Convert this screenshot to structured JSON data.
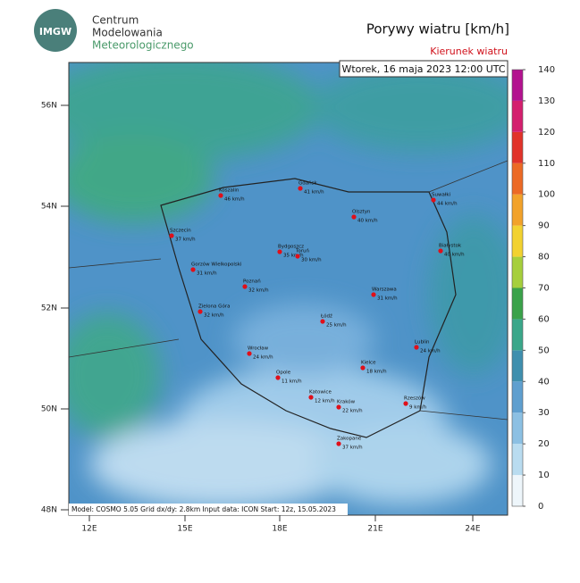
{
  "header": {
    "logo": "IMGW",
    "institution": [
      "Centrum",
      "Modelowania",
      "Meteorologicznego"
    ],
    "title": "Porywy wiatru [km/h]",
    "subtitle": "Kierunek wiatru",
    "date": "Wtorek, 16 maja 2023 12:00 UTC"
  },
  "map": {
    "lat_labels": [
      "56N",
      "54N",
      "52N",
      "50N",
      "48N"
    ],
    "lon_labels": [
      "12E",
      "15E",
      "18E",
      "21E",
      "24E"
    ],
    "cities": [
      {
        "name": "Gdańsk",
        "gust": "41 km/h"
      },
      {
        "name": "Koszalin",
        "gust": "46 km/h"
      },
      {
        "name": "Suwałki",
        "gust": "44 km/h"
      },
      {
        "name": "Olsztyn",
        "gust": "40 km/h"
      },
      {
        "name": "Szczecin",
        "gust": "37 km/h"
      },
      {
        "name": "Bydgoszcz",
        "gust": "35 km/h"
      },
      {
        "name": "Toruń",
        "gust": "30 km/h"
      },
      {
        "name": "Białystok",
        "gust": "40 km/h"
      },
      {
        "name": "Gorzów Wielkopolski",
        "gust": "31 km/h"
      },
      {
        "name": "Poznań",
        "gust": "32 km/h"
      },
      {
        "name": "Warszawa",
        "gust": "31 km/h"
      },
      {
        "name": "Zielona Góra",
        "gust": "32 km/h"
      },
      {
        "name": "Łódź",
        "gust": "25 km/h"
      },
      {
        "name": "Lublin",
        "gust": "24 km/h"
      },
      {
        "name": "Wrocław",
        "gust": "24 km/h"
      },
      {
        "name": "Kielce",
        "gust": "18 km/h"
      },
      {
        "name": "Opole",
        "gust": "11 km/h"
      },
      {
        "name": "Katowice",
        "gust": "12 km/h"
      },
      {
        "name": "Kraków",
        "gust": "22 km/h"
      },
      {
        "name": "Rzeszów",
        "gust": "9 km/h"
      },
      {
        "name": "Zakopane",
        "gust": "37 km/h"
      }
    ],
    "footer": "Model: COSMO 5.05  Grid dx/dy: 2.8km  Input data: ICON  Start: 12z, 15.05.2023"
  },
  "colorbar": {
    "ticks": [
      0,
      10,
      20,
      30,
      40,
      50,
      60,
      70,
      80,
      90,
      100,
      110,
      120,
      130,
      140
    ],
    "colors": [
      "#eef6fb",
      "#b9dcf0",
      "#8cc0e3",
      "#5f9fcf",
      "#3f8fae",
      "#3aa78a",
      "#3aa24a",
      "#a6cf3c",
      "#f2d230",
      "#f2a22a",
      "#ec6a25",
      "#e1332a",
      "#d41f6e",
      "#b3128f"
    ]
  }
}
